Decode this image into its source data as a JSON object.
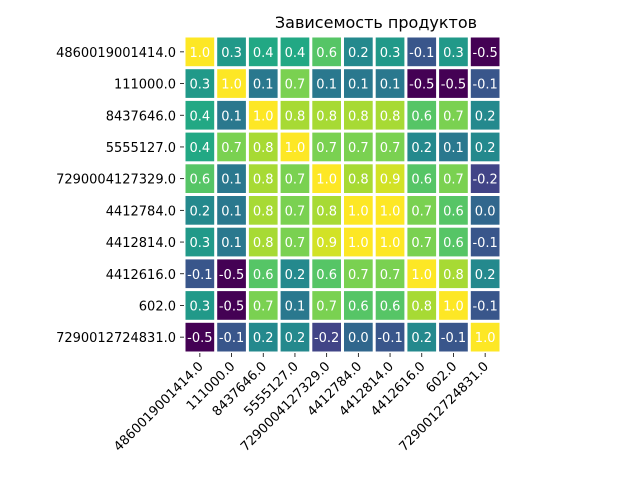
{
  "chart_data": {
    "type": "heatmap",
    "title": "Зависемость продуктов",
    "xlabel": "",
    "ylabel": "",
    "labels": [
      "4860019001414.0",
      "111000.0",
      "8437646.0",
      "5555127.0",
      "7290004127329.0",
      "4412784.0",
      "4412814.0",
      "4412616.0",
      "602.0",
      "7290012724831.0"
    ],
    "matrix": [
      [
        1.0,
        0.3,
        0.4,
        0.4,
        0.6,
        0.2,
        0.3,
        -0.1,
        0.3,
        -0.5
      ],
      [
        0.3,
        1.0,
        0.1,
        0.7,
        0.1,
        0.1,
        0.1,
        -0.5,
        -0.5,
        -0.1
      ],
      [
        0.4,
        0.1,
        1.0,
        0.8,
        0.8,
        0.8,
        0.8,
        0.6,
        0.7,
        0.2
      ],
      [
        0.4,
        0.7,
        0.8,
        1.0,
        0.7,
        0.7,
        0.7,
        0.2,
        0.1,
        0.2
      ],
      [
        0.6,
        0.1,
        0.8,
        0.7,
        1.0,
        0.8,
        0.9,
        0.6,
        0.7,
        -0.2
      ],
      [
        0.2,
        0.1,
        0.8,
        0.7,
        0.8,
        1.0,
        1.0,
        0.7,
        0.6,
        0.0
      ],
      [
        0.3,
        0.1,
        0.8,
        0.7,
        0.9,
        1.0,
        1.0,
        0.7,
        0.6,
        -0.1
      ],
      [
        -0.1,
        -0.5,
        0.6,
        0.2,
        0.6,
        0.7,
        0.7,
        1.0,
        0.8,
        0.2
      ],
      [
        0.3,
        -0.5,
        0.7,
        0.1,
        0.7,
        0.6,
        0.6,
        0.8,
        1.0,
        -0.1
      ],
      [
        -0.5,
        -0.1,
        0.2,
        0.2,
        -0.2,
        0.0,
        -0.1,
        0.2,
        -0.1,
        1.0
      ]
    ],
    "colormap": "viridis",
    "value_range": [
      -0.5,
      1.0
    ],
    "annotated": true,
    "annotation_format": "0.1f",
    "cell_border_color": "#ffffff",
    "annotation_color": "#ffffff",
    "legend": "none"
  }
}
